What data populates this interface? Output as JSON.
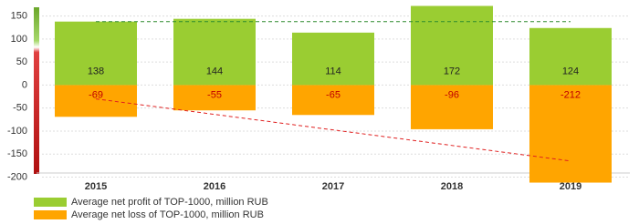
{
  "chart_data": {
    "type": "bar",
    "categories": [
      "2015",
      "2016",
      "2017",
      "2018",
      "2019"
    ],
    "series": [
      {
        "name": "Average net profit of TOP-1000, million RUB",
        "color": "#9acd32",
        "label_color": "#222222",
        "values": [
          138,
          144,
          114,
          172,
          124
        ]
      },
      {
        "name": "Average net loss of TOP-1000, million RUB",
        "color": "#ffa500",
        "label_color": "#c00000",
        "values": [
          -69,
          -55,
          -65,
          -96,
          -212
        ]
      }
    ],
    "trendlines": [
      {
        "color": "#2e8b2e",
        "values": [
          138,
          138
        ]
      },
      {
        "color": "#e02020",
        "values": [
          -30,
          -165
        ]
      }
    ],
    "ylim": [
      -205,
      175
    ],
    "yticks": [
      -200,
      -150,
      -100,
      -50,
      0,
      50,
      100,
      150
    ],
    "grid": true
  }
}
